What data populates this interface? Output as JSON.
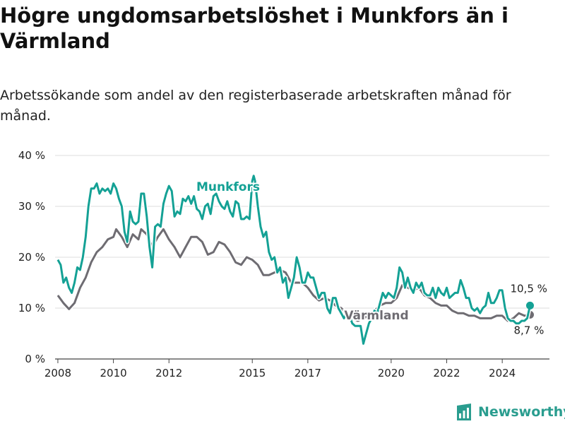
{
  "title": "Högre ungdomsarbetslöshet i Munkfors än i Värmland",
  "subtitle": "Arbetssökande som andel av den registerbaserade arbetskraften månad för månad.",
  "brand": "Newsworthy",
  "colors": {
    "munkfors": "#14a195",
    "varmland": "#6e6c72",
    "grid": "#dddddd",
    "brand": "#2a9d8f"
  },
  "chart_data": {
    "type": "line",
    "ylim": [
      0,
      40
    ],
    "xlim": [
      2007.9,
      2025.7
    ],
    "y_ticks": [
      0,
      10,
      20,
      30,
      40
    ],
    "y_tick_labels": [
      "0 %",
      "10 %",
      "20 %",
      "30 %",
      "40 %"
    ],
    "x_ticks": [
      2008,
      2010,
      2012,
      2015,
      2017,
      2020,
      2022,
      2024
    ],
    "x_tick_labels": [
      "2008",
      "2010",
      "2012",
      "2015",
      "2017",
      "2020",
      "2022",
      "2024"
    ],
    "grid": true,
    "series": [
      {
        "name": "Munkfors",
        "end_label": "10,5 %",
        "points": [
          [
            2008.0,
            19.5
          ],
          [
            2008.1,
            18.5
          ],
          [
            2008.2,
            15
          ],
          [
            2008.3,
            16
          ],
          [
            2008.4,
            14
          ],
          [
            2008.5,
            13
          ],
          [
            2008.6,
            15
          ],
          [
            2008.7,
            18
          ],
          [
            2008.8,
            17.5
          ],
          [
            2008.9,
            20
          ],
          [
            2009.0,
            24
          ],
          [
            2009.1,
            30
          ],
          [
            2009.2,
            33.5
          ],
          [
            2009.3,
            33.5
          ],
          [
            2009.4,
            34.5
          ],
          [
            2009.5,
            32.5
          ],
          [
            2009.6,
            33.5
          ],
          [
            2009.7,
            33
          ],
          [
            2009.8,
            33.5
          ],
          [
            2009.9,
            32.5
          ],
          [
            2010.0,
            34.5
          ],
          [
            2010.1,
            33.5
          ],
          [
            2010.2,
            31.5
          ],
          [
            2010.3,
            30
          ],
          [
            2010.4,
            25
          ],
          [
            2010.5,
            23
          ],
          [
            2010.6,
            29
          ],
          [
            2010.7,
            27
          ],
          [
            2010.8,
            26.5
          ],
          [
            2010.9,
            27
          ],
          [
            2011.0,
            32.5
          ],
          [
            2011.1,
            32.5
          ],
          [
            2011.2,
            28
          ],
          [
            2011.3,
            22
          ],
          [
            2011.4,
            18
          ],
          [
            2011.5,
            26
          ],
          [
            2011.6,
            26.5
          ],
          [
            2011.7,
            26
          ],
          [
            2011.8,
            30.5
          ],
          [
            2011.9,
            32.5
          ],
          [
            2012.0,
            34
          ],
          [
            2012.1,
            33
          ],
          [
            2012.2,
            28
          ],
          [
            2012.3,
            29
          ],
          [
            2012.4,
            28.5
          ],
          [
            2012.5,
            31.5
          ],
          [
            2012.6,
            31
          ],
          [
            2012.7,
            32
          ],
          [
            2012.8,
            30.5
          ],
          [
            2012.9,
            32
          ],
          [
            2013.0,
            29.5
          ],
          [
            2013.1,
            29
          ],
          [
            2013.2,
            27.5
          ],
          [
            2013.3,
            30
          ],
          [
            2013.4,
            30.5
          ],
          [
            2013.5,
            28.5
          ],
          [
            2013.6,
            32
          ],
          [
            2013.7,
            32.5
          ],
          [
            2013.8,
            31
          ],
          [
            2013.9,
            30
          ],
          [
            2014.0,
            29.5
          ],
          [
            2014.1,
            31
          ],
          [
            2014.2,
            29
          ],
          [
            2014.3,
            28
          ],
          [
            2014.4,
            31
          ],
          [
            2014.5,
            30.5
          ],
          [
            2014.6,
            27.5
          ],
          [
            2014.7,
            27.5
          ],
          [
            2014.8,
            28
          ],
          [
            2014.9,
            27.5
          ],
          [
            2015.0,
            35
          ],
          [
            2015.05,
            36
          ],
          [
            2015.1,
            35
          ],
          [
            2015.2,
            30
          ],
          [
            2015.3,
            26
          ],
          [
            2015.4,
            24
          ],
          [
            2015.5,
            25
          ],
          [
            2015.6,
            21
          ],
          [
            2015.7,
            19.5
          ],
          [
            2015.8,
            20
          ],
          [
            2015.9,
            17
          ],
          [
            2016.0,
            18
          ],
          [
            2016.1,
            15
          ],
          [
            2016.2,
            16
          ],
          [
            2016.3,
            12
          ],
          [
            2016.4,
            14
          ],
          [
            2016.5,
            16
          ],
          [
            2016.6,
            20
          ],
          [
            2016.7,
            18
          ],
          [
            2016.8,
            15
          ],
          [
            2016.9,
            15
          ],
          [
            2017.0,
            17
          ],
          [
            2017.1,
            16
          ],
          [
            2017.2,
            16
          ],
          [
            2017.3,
            14
          ],
          [
            2017.4,
            12
          ],
          [
            2017.5,
            13
          ],
          [
            2017.6,
            13
          ],
          [
            2017.7,
            10
          ],
          [
            2017.8,
            9
          ],
          [
            2017.9,
            12
          ],
          [
            2018.0,
            12
          ],
          [
            2018.1,
            10
          ],
          [
            2018.2,
            9
          ],
          [
            2018.3,
            8
          ],
          [
            2018.4,
            9
          ],
          [
            2018.5,
            8.5
          ],
          [
            2018.6,
            7
          ],
          [
            2018.7,
            6.5
          ],
          [
            2018.8,
            6.5
          ],
          [
            2018.9,
            6.5
          ],
          [
            2019.0,
            3
          ],
          [
            2019.1,
            5
          ],
          [
            2019.2,
            7
          ],
          [
            2019.3,
            8
          ],
          [
            2019.4,
            9.5
          ],
          [
            2019.5,
            9
          ],
          [
            2019.6,
            11
          ],
          [
            2019.7,
            13
          ],
          [
            2019.8,
            12
          ],
          [
            2019.9,
            13
          ],
          [
            2020.0,
            12.5
          ],
          [
            2020.1,
            12
          ],
          [
            2020.2,
            14
          ],
          [
            2020.3,
            18
          ],
          [
            2020.4,
            17
          ],
          [
            2020.5,
            14
          ],
          [
            2020.6,
            16
          ],
          [
            2020.7,
            14
          ],
          [
            2020.8,
            13
          ],
          [
            2020.9,
            15
          ],
          [
            2021.0,
            14
          ],
          [
            2021.1,
            15
          ],
          [
            2021.2,
            13
          ],
          [
            2021.3,
            12.5
          ],
          [
            2021.4,
            12.5
          ],
          [
            2021.5,
            14
          ],
          [
            2021.6,
            12
          ],
          [
            2021.7,
            14
          ],
          [
            2021.8,
            13
          ],
          [
            2021.9,
            12.5
          ],
          [
            2022.0,
            14
          ],
          [
            2022.1,
            12
          ],
          [
            2022.2,
            12.5
          ],
          [
            2022.3,
            13
          ],
          [
            2022.4,
            13
          ],
          [
            2022.5,
            15.5
          ],
          [
            2022.6,
            14
          ],
          [
            2022.7,
            12
          ],
          [
            2022.8,
            12
          ],
          [
            2022.9,
            10
          ],
          [
            2023.0,
            9.5
          ],
          [
            2023.1,
            10
          ],
          [
            2023.2,
            9
          ],
          [
            2023.3,
            10
          ],
          [
            2023.4,
            10.5
          ],
          [
            2023.5,
            13
          ],
          [
            2023.6,
            11
          ],
          [
            2023.7,
            11
          ],
          [
            2023.8,
            12
          ],
          [
            2023.9,
            13.5
          ],
          [
            2024.0,
            13.5
          ],
          [
            2024.1,
            10
          ],
          [
            2024.2,
            8
          ],
          [
            2024.3,
            7.5
          ],
          [
            2024.4,
            7.5
          ],
          [
            2024.5,
            7
          ],
          [
            2024.6,
            7
          ],
          [
            2024.7,
            7.5
          ],
          [
            2024.8,
            7.5
          ],
          [
            2024.9,
            8
          ],
          [
            2025.0,
            10.5
          ]
        ]
      },
      {
        "name": "Värmland",
        "end_label": "8,7 %",
        "points": [
          [
            2008.0,
            12.5
          ],
          [
            2008.2,
            11
          ],
          [
            2008.4,
            9.8
          ],
          [
            2008.6,
            11
          ],
          [
            2008.8,
            14
          ],
          [
            2009.0,
            16
          ],
          [
            2009.2,
            19
          ],
          [
            2009.4,
            21
          ],
          [
            2009.6,
            22
          ],
          [
            2009.8,
            23.5
          ],
          [
            2010.0,
            24
          ],
          [
            2010.1,
            25.5
          ],
          [
            2010.3,
            24
          ],
          [
            2010.5,
            22
          ],
          [
            2010.7,
            24.5
          ],
          [
            2010.9,
            23.5
          ],
          [
            2011.0,
            25.5
          ],
          [
            2011.2,
            24.5
          ],
          [
            2011.4,
            22
          ],
          [
            2011.6,
            24
          ],
          [
            2011.8,
            25.5
          ],
          [
            2012.0,
            23.5
          ],
          [
            2012.2,
            22
          ],
          [
            2012.4,
            20
          ],
          [
            2012.6,
            22
          ],
          [
            2012.8,
            24
          ],
          [
            2013.0,
            24
          ],
          [
            2013.2,
            23
          ],
          [
            2013.4,
            20.5
          ],
          [
            2013.6,
            21
          ],
          [
            2013.8,
            23
          ],
          [
            2014.0,
            22.5
          ],
          [
            2014.2,
            21
          ],
          [
            2014.4,
            19
          ],
          [
            2014.6,
            18.5
          ],
          [
            2014.8,
            20
          ],
          [
            2015.0,
            19.5
          ],
          [
            2015.2,
            18.5
          ],
          [
            2015.4,
            16.5
          ],
          [
            2015.6,
            16.5
          ],
          [
            2015.8,
            17
          ],
          [
            2016.0,
            17.5
          ],
          [
            2016.2,
            17
          ],
          [
            2016.4,
            15
          ],
          [
            2016.6,
            15
          ],
          [
            2016.8,
            15
          ],
          [
            2017.0,
            14
          ],
          [
            2017.2,
            12.5
          ],
          [
            2017.4,
            11.5
          ],
          [
            2017.6,
            12
          ],
          [
            2017.8,
            11.5
          ],
          [
            2018.0,
            10.5
          ],
          [
            2018.2,
            10
          ],
          [
            2018.4,
            9
          ],
          [
            2018.6,
            8
          ],
          [
            2018.8,
            7.5
          ],
          [
            2019.0,
            8
          ],
          [
            2019.2,
            8.5
          ],
          [
            2019.4,
            9.5
          ],
          [
            2019.6,
            10.5
          ],
          [
            2019.8,
            11
          ],
          [
            2020.0,
            11
          ],
          [
            2020.2,
            12
          ],
          [
            2020.4,
            14.5
          ],
          [
            2020.6,
            14
          ],
          [
            2020.8,
            13.5
          ],
          [
            2021.0,
            14
          ],
          [
            2021.2,
            12.5
          ],
          [
            2021.4,
            12
          ],
          [
            2021.6,
            11
          ],
          [
            2021.8,
            10.5
          ],
          [
            2022.0,
            10.5
          ],
          [
            2022.2,
            9.5
          ],
          [
            2022.4,
            9
          ],
          [
            2022.6,
            9
          ],
          [
            2022.8,
            8.5
          ],
          [
            2023.0,
            8.5
          ],
          [
            2023.2,
            8
          ],
          [
            2023.4,
            8
          ],
          [
            2023.6,
            8
          ],
          [
            2023.8,
            8.5
          ],
          [
            2024.0,
            8.5
          ],
          [
            2024.2,
            7.5
          ],
          [
            2024.4,
            8
          ],
          [
            2024.6,
            9
          ],
          [
            2024.8,
            8.5
          ],
          [
            2025.0,
            8.7
          ]
        ]
      }
    ]
  }
}
